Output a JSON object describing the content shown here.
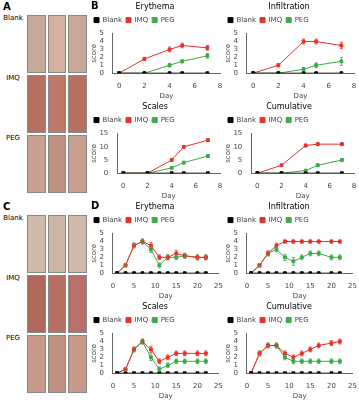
{
  "chart_data": [
    {
      "type": "image_grid",
      "title": "A",
      "categories": [
        "Blank",
        "IMQ",
        "PEG"
      ],
      "colors": [
        "#c8a898",
        "#d4b0a0",
        "#c8a898",
        "#b87060",
        "#c07868",
        "#b87060",
        "#c8a090",
        "#c09080",
        "#c8a090"
      ]
    },
    {
      "type": "line",
      "title": "Erythema",
      "annotations": [
        "B"
      ],
      "xlabel": "Day",
      "ylabel": "score",
      "x": [
        0,
        2,
        4,
        5,
        7
      ],
      "series": [
        {
          "name": "Blank",
          "color": "#000000",
          "values": [
            0,
            0,
            0,
            0,
            0
          ],
          "errors": [
            0,
            0,
            0,
            0,
            0
          ]
        },
        {
          "name": "IMQ",
          "color": "#e8312a",
          "values": [
            0,
            1.8,
            3.0,
            3.5,
            3.2
          ],
          "errors": [
            0,
            0.2,
            0.3,
            0.3,
            0.3
          ]
        },
        {
          "name": "PEG",
          "color": "#3daa4b",
          "values": [
            0,
            0,
            1.0,
            1.5,
            2.2
          ],
          "errors": [
            0,
            0,
            0.2,
            0.2,
            0.3
          ]
        }
      ],
      "xlim": [
        -0.5,
        8
      ],
      "xticks": [
        0,
        2,
        4,
        6,
        8
      ],
      "ylim": [
        0,
        5
      ],
      "yticks": [
        0,
        1,
        2,
        3,
        4,
        5
      ],
      "marker": "square",
      "grid": false,
      "legend": "upper left"
    },
    {
      "type": "line",
      "title": "Infiltration",
      "xlabel": "Day",
      "ylabel": "score",
      "x": [
        0,
        2,
        4,
        5,
        7
      ],
      "series": [
        {
          "name": "Blank",
          "color": "#000000",
          "values": [
            0,
            0,
            0,
            0,
            0
          ],
          "errors": [
            0,
            0,
            0,
            0,
            0
          ]
        },
        {
          "name": "IMQ",
          "color": "#e8312a",
          "values": [
            0,
            1.0,
            4.0,
            4.0,
            3.5
          ],
          "errors": [
            0,
            0.2,
            0.3,
            0.3,
            0.4
          ]
        },
        {
          "name": "PEG",
          "color": "#3daa4b",
          "values": [
            0,
            0,
            0.5,
            1.0,
            1.5
          ],
          "errors": [
            0,
            0,
            0.2,
            0.3,
            0.5
          ]
        }
      ],
      "xlim": [
        -0.5,
        8
      ],
      "xticks": [
        0,
        2,
        4,
        6,
        8
      ],
      "ylim": [
        0,
        5
      ],
      "yticks": [
        0,
        1,
        2,
        3,
        4,
        5
      ],
      "marker": "square",
      "grid": false,
      "legend": "upper left"
    },
    {
      "type": "line",
      "title": "Scales",
      "xlabel": "Day",
      "ylabel": "score",
      "x": [
        0,
        2,
        4,
        5,
        7
      ],
      "series": [
        {
          "name": "Blank",
          "color": "#000000",
          "values": [
            0,
            0,
            0,
            0,
            0
          ],
          "errors": [
            0,
            0,
            0,
            0,
            0
          ]
        },
        {
          "name": "IMQ",
          "color": "#e8312a",
          "values": [
            0,
            0,
            5.0,
            10.0,
            12.5
          ],
          "errors": [
            0,
            0,
            0.5,
            0.5,
            0.5
          ]
        },
        {
          "name": "PEG",
          "color": "#3daa4b",
          "values": [
            0,
            0,
            2.0,
            4.0,
            6.5
          ],
          "errors": [
            0,
            0,
            0.3,
            0.5,
            0.5
          ]
        }
      ],
      "xlim": [
        -0.5,
        8
      ],
      "xticks": [
        0,
        2,
        4,
        6,
        8
      ],
      "ylim": [
        0,
        15
      ],
      "yticks": [
        0,
        5,
        10,
        15
      ],
      "marker": "square",
      "grid": false,
      "legend": "upper left"
    },
    {
      "type": "line",
      "title": "Cumulative",
      "xlabel": "Day",
      "ylabel": "score",
      "x": [
        0,
        2,
        4,
        5,
        7
      ],
      "series": [
        {
          "name": "Blank",
          "color": "#000000",
          "values": [
            0,
            0,
            0,
            0,
            0
          ],
          "errors": [
            0,
            0,
            0,
            0,
            0
          ]
        },
        {
          "name": "IMQ",
          "color": "#e8312a",
          "values": [
            0,
            3.0,
            10.5,
            11.0,
            11.0
          ],
          "errors": [
            0,
            0.3,
            0.5,
            0.5,
            0.5
          ]
        },
        {
          "name": "PEG",
          "color": "#3daa4b",
          "values": [
            0,
            0,
            1.0,
            3.0,
            5.0
          ],
          "errors": [
            0,
            0,
            0.2,
            0.5,
            0.5
          ]
        }
      ],
      "xlim": [
        -0.5,
        8
      ],
      "xticks": [
        0,
        2,
        4,
        6,
        8
      ],
      "ylim": [
        0,
        15
      ],
      "yticks": [
        0,
        5,
        10,
        15
      ],
      "marker": "square",
      "grid": false,
      "legend": "upper left"
    },
    {
      "type": "image_grid",
      "title": "C",
      "categories": [
        "Blank",
        "IMQ",
        "PEG"
      ],
      "colors": [
        "#d0b8aa",
        "#ccb4a6",
        "#d0b8aa",
        "#b06858",
        "#b87060",
        "#b87068",
        "#c89888",
        "#c09080",
        "#c89888"
      ]
    },
    {
      "type": "line",
      "title": "Erythema",
      "annotations": [
        "D"
      ],
      "xlabel": "Day",
      "ylabel": "score",
      "x": [
        1,
        3,
        5,
        7,
        9,
        11,
        13,
        15,
        17,
        20,
        22
      ],
      "series": [
        {
          "name": "Blank",
          "color": "#000000",
          "values": [
            0,
            0,
            0,
            0,
            0,
            0,
            0,
            0,
            0,
            0,
            0
          ],
          "errors": [
            0,
            0,
            0,
            0,
            0,
            0,
            0,
            0,
            0,
            0,
            0
          ]
        },
        {
          "name": "IMQ",
          "color": "#e8312a",
          "values": [
            0,
            1.0,
            3.5,
            4.0,
            3.5,
            2.0,
            2.0,
            2.5,
            2.2,
            2.0,
            2.0
          ],
          "errors": [
            0,
            0.2,
            0.3,
            0.3,
            0.4,
            0.3,
            0.3,
            0.4,
            0.3,
            0.3,
            0.3
          ]
        },
        {
          "name": "PEG",
          "color": "#3daa4b",
          "values": [
            0,
            1.0,
            3.5,
            4.0,
            3.0,
            1.0,
            2.0,
            2.0,
            2.2,
            2.0,
            2.0
          ],
          "errors": [
            0,
            0.2,
            0.3,
            0.3,
            0.4,
            0.3,
            0.3,
            0.3,
            0.3,
            0.3,
            0.3
          ]
        }
      ],
      "xlim": [
        0,
        25
      ],
      "xticks": [
        0,
        5,
        10,
        15,
        20,
        25
      ],
      "ylim": [
        0,
        5
      ],
      "yticks": [
        0,
        1,
        2,
        3,
        4,
        5
      ],
      "marker": "square",
      "grid": false,
      "legend": "upper left"
    },
    {
      "type": "line",
      "title": "Infiltration",
      "xlabel": "Day",
      "ylabel": "score",
      "x": [
        1,
        3,
        5,
        7,
        9,
        11,
        13,
        15,
        17,
        20,
        22
      ],
      "series": [
        {
          "name": "Blank",
          "color": "#000000",
          "values": [
            0,
            0,
            0,
            0,
            0,
            0,
            0,
            0,
            0,
            0,
            0
          ],
          "errors": [
            0,
            0,
            0,
            0,
            0,
            0,
            0,
            0,
            0,
            0,
            0
          ]
        },
        {
          "name": "IMQ",
          "color": "#e8312a",
          "values": [
            0,
            1.0,
            2.5,
            3.5,
            4.0,
            4.0,
            4.0,
            4.0,
            4.0,
            4.0,
            4.0
          ],
          "errors": [
            0,
            0.2,
            0.3,
            0.3,
            0.2,
            0.2,
            0.2,
            0.2,
            0.2,
            0.2,
            0.2
          ]
        },
        {
          "name": "PEG",
          "color": "#3daa4b",
          "values": [
            0,
            1.0,
            2.5,
            3.0,
            2.0,
            1.5,
            2.0,
            2.5,
            2.5,
            2.0,
            2.0
          ],
          "errors": [
            0,
            0.2,
            0.3,
            0.3,
            0.4,
            0.5,
            0.3,
            0.3,
            0.3,
            0.3,
            0.3
          ]
        }
      ],
      "xlim": [
        0,
        25
      ],
      "xticks": [
        0,
        5,
        10,
        15,
        20,
        25
      ],
      "ylim": [
        0,
        5
      ],
      "yticks": [
        0,
        1,
        2,
        3,
        4,
        5
      ],
      "marker": "square",
      "grid": false,
      "legend": "upper left"
    },
    {
      "type": "line",
      "title": "Scales",
      "xlabel": "Day",
      "ylabel": "score",
      "x": [
        1,
        3,
        5,
        7,
        9,
        11,
        13,
        15,
        17,
        20,
        22
      ],
      "series": [
        {
          "name": "Blank",
          "color": "#000000",
          "values": [
            0,
            0,
            0,
            0,
            0,
            0,
            0,
            0,
            0,
            0,
            0
          ],
          "errors": [
            0,
            0,
            0,
            0,
            0,
            0,
            0,
            0,
            0,
            0,
            0
          ]
        },
        {
          "name": "IMQ",
          "color": "#e8312a",
          "values": [
            0,
            0.5,
            3.0,
            4.0,
            3.0,
            1.5,
            2.0,
            2.5,
            2.5,
            2.5,
            2.5
          ],
          "errors": [
            0,
            0.2,
            0.3,
            0.3,
            0.4,
            0.3,
            0.3,
            0.3,
            0.3,
            0.3,
            0.3
          ]
        },
        {
          "name": "PEG",
          "color": "#3daa4b",
          "values": [
            0,
            0.5,
            3.0,
            4.0,
            2.0,
            0.5,
            1.0,
            1.5,
            1.5,
            1.5,
            1.5
          ],
          "errors": [
            0,
            0.2,
            0.3,
            0.3,
            0.4,
            0.3,
            0.3,
            0.3,
            0.3,
            0.3,
            0.3
          ]
        }
      ],
      "xlim": [
        0,
        25
      ],
      "xticks": [
        0,
        5,
        10,
        15,
        20,
        25
      ],
      "ylim": [
        0,
        5
      ],
      "yticks": [
        0,
        1,
        2,
        3,
        4,
        5
      ],
      "marker": "square",
      "grid": false,
      "legend": "upper left"
    },
    {
      "type": "line",
      "title": "Cumulative",
      "xlabel": "Day",
      "ylabel": "score",
      "x": [
        1,
        3,
        5,
        7,
        9,
        11,
        13,
        15,
        17,
        20,
        22
      ],
      "series": [
        {
          "name": "Blank",
          "color": "#000000",
          "values": [
            0,
            0,
            0,
            0,
            0,
            0,
            0,
            0,
            0,
            0,
            0
          ],
          "errors": [
            0,
            0,
            0,
            0,
            0,
            0,
            0,
            0,
            0,
            0,
            0
          ]
        },
        {
          "name": "IMQ",
          "color": "#e8312a",
          "values": [
            0,
            2.5,
            3.5,
            3.5,
            2.5,
            2.0,
            2.5,
            3.0,
            3.5,
            3.8,
            4.0
          ],
          "errors": [
            0,
            0.3,
            0.3,
            0.3,
            0.3,
            0.3,
            0.3,
            0.3,
            0.3,
            0.3,
            0.3
          ]
        },
        {
          "name": "PEG",
          "color": "#3daa4b",
          "values": [
            0,
            2.5,
            3.5,
            3.5,
            2.0,
            1.5,
            1.5,
            1.5,
            1.5,
            1.5,
            1.5
          ],
          "errors": [
            0,
            0.3,
            0.3,
            0.3,
            0.3,
            0.3,
            0.3,
            0.3,
            0.3,
            0.3,
            0.3
          ]
        }
      ],
      "xlim": [
        0,
        25
      ],
      "xticks": [
        0,
        5,
        10,
        15,
        20,
        25
      ],
      "ylim": [
        0,
        5
      ],
      "yticks": [
        0,
        1,
        2,
        3,
        4,
        5
      ],
      "marker": "square",
      "grid": false,
      "legend": "upper left"
    }
  ]
}
